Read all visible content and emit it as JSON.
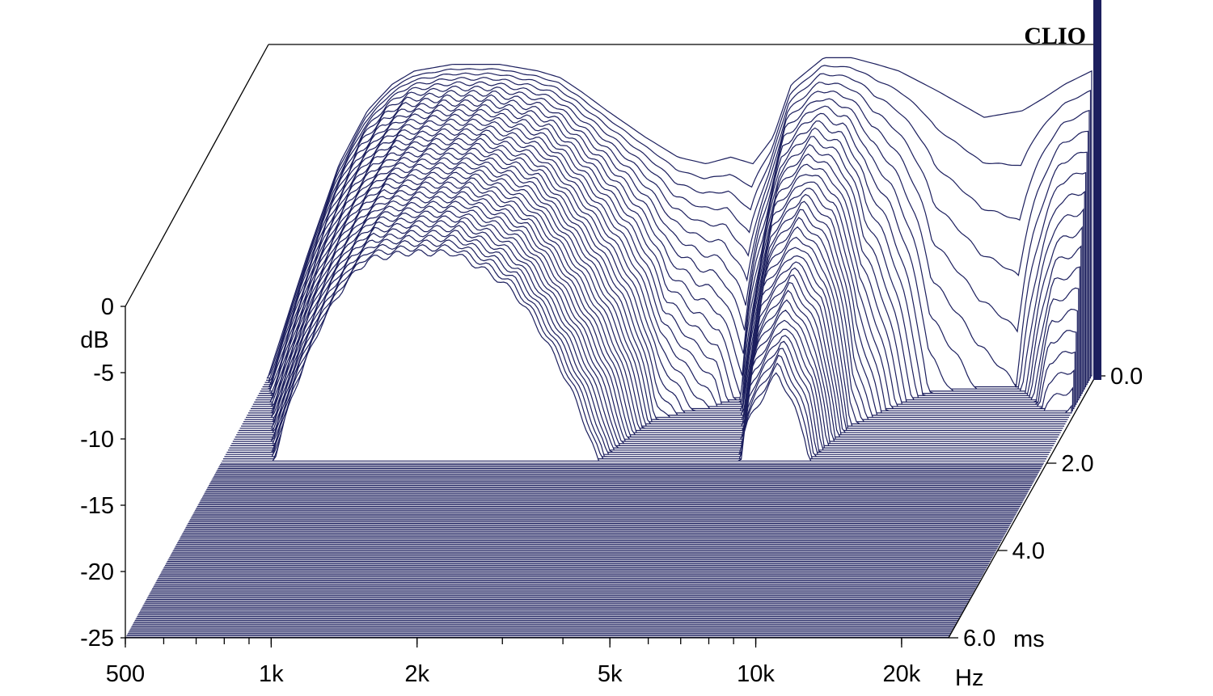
{
  "colors": {
    "line": "#1c1f5e",
    "axis": "#000000",
    "background": "#ffffff"
  },
  "brand": "CLIO",
  "chart_data": {
    "type": "waterfall",
    "x_unit": "Hz",
    "y_unit": "dB",
    "z_unit": "ms",
    "x_scale": "log",
    "xlim": [
      500,
      25000
    ],
    "ylim": [
      -25,
      0
    ],
    "zlim": [
      0,
      6
    ],
    "slice_count": 40,
    "slice_step_ms": 0.05,
    "x_ticks": [
      {
        "value": 500,
        "label": "500"
      },
      {
        "value": 1000,
        "label": "1k"
      },
      {
        "value": 2000,
        "label": "2k"
      },
      {
        "value": 5000,
        "label": "5k"
      },
      {
        "value": 10000,
        "label": "10k"
      },
      {
        "value": 20000,
        "label": "20k"
      }
    ],
    "y_ticks": [
      {
        "value": 0,
        "label": "0"
      },
      {
        "value": -5,
        "label": "-5"
      },
      {
        "value": -10,
        "label": "-10"
      },
      {
        "value": -15,
        "label": "-15"
      },
      {
        "value": -20,
        "label": "-20"
      },
      {
        "value": -25,
        "label": "-25"
      }
    ],
    "z_ticks": [
      {
        "value": 0,
        "label": "0.0"
      },
      {
        "value": 2,
        "label": "2.0"
      },
      {
        "value": 4,
        "label": "4.0"
      },
      {
        "value": 6,
        "label": "6.0"
      }
    ],
    "response_profile": {
      "freq": [
        500,
        600,
        700,
        800,
        900,
        1000,
        1200,
        1500,
        1800,
        2000,
        2200,
        2500,
        3000,
        3500,
        4000,
        4500,
        5000,
        5500,
        6000,
        7000,
        8000,
        9000,
        10000,
        12000,
        15000,
        18000,
        20000,
        22000,
        25000
      ],
      "db": [
        -25,
        -16,
        -9,
        -5,
        -3,
        -2,
        -1.5,
        -1.5,
        -2,
        -2.5,
        -3.5,
        -5,
        -7,
        -8.5,
        -9,
        -8.5,
        -9,
        -7,
        -3,
        -1,
        -1,
        -1.5,
        -2,
        -3.5,
        -5.5,
        -5,
        -4,
        -3,
        -2
      ]
    },
    "decay_ms": {
      "freq": [
        500,
        800,
        1000,
        1500,
        2000,
        2500,
        3000,
        3500,
        4500,
        5000,
        6000,
        7000,
        8000,
        9000,
        12000,
        18000,
        20000,
        22000,
        25000
      ],
      "ms": [
        1.0,
        1.6,
        2.0,
        2.0,
        1.6,
        1.2,
        0.85,
        0.5,
        0.35,
        0.25,
        0.8,
        0.9,
        0.7,
        0.4,
        0.15,
        0.1,
        0.2,
        0.3,
        0.3
      ]
    }
  },
  "labels": {
    "db_unit": "dB",
    "hz_unit": "Hz",
    "ms_unit": "ms"
  }
}
